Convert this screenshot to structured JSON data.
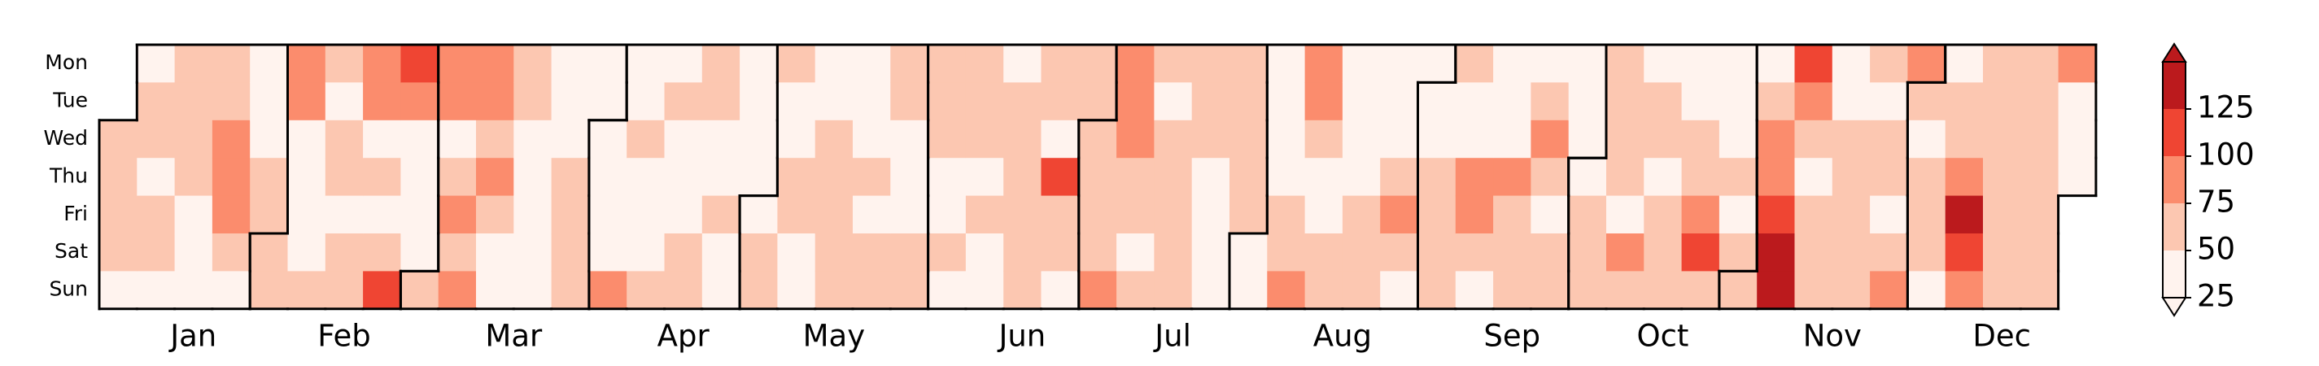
{
  "chart_data": {
    "type": "calendar-heatmap",
    "days": [
      "Mon",
      "Tue",
      "Wed",
      "Thu",
      "Fri",
      "Sat",
      "Sun"
    ],
    "months": [
      {
        "name": "Jan",
        "values": [
          62,
          62,
          62,
          62,
          38,
          38,
          62,
          62,
          38,
          62,
          62,
          38,
          62,
          62,
          62,
          62,
          38,
          38,
          38,
          62,
          62,
          87,
          87,
          87,
          62,
          38,
          38,
          38,
          38,
          62,
          62
        ]
      },
      {
        "name": "Feb",
        "values": [
          62,
          62,
          87,
          87,
          38,
          38,
          38,
          38,
          62,
          62,
          38,
          62,
          62,
          38,
          62,
          62,
          87,
          87,
          38,
          62,
          38,
          62,
          112,
          112,
          87,
          38,
          38,
          38,
          38
        ]
      },
      {
        "name": "Mar",
        "values": [
          62,
          87,
          87,
          38,
          62,
          87,
          62,
          87,
          87,
          87,
          62,
          87,
          62,
          38,
          38,
          62,
          62,
          38,
          38,
          38,
          38,
          38,
          38,
          38,
          38,
          62,
          62,
          62,
          62,
          38,
          38
        ]
      },
      {
        "name": "Apr",
        "values": [
          38,
          38,
          38,
          38,
          87,
          38,
          38,
          62,
          38,
          38,
          38,
          62,
          38,
          62,
          38,
          38,
          38,
          62,
          62,
          62,
          62,
          38,
          38,
          62,
          38,
          38,
          38,
          38,
          38,
          38
        ]
      },
      {
        "name": "May",
        "values": [
          38,
          62,
          62,
          62,
          38,
          38,
          62,
          62,
          38,
          38,
          38,
          38,
          62,
          62,
          62,
          62,
          62,
          38,
          38,
          38,
          62,
          38,
          62,
          62,
          62,
          62,
          38,
          38,
          38,
          62,
          62
        ]
      },
      {
        "name": "Jun",
        "values": [
          62,
          62,
          62,
          38,
          38,
          62,
          38,
          62,
          62,
          62,
          38,
          62,
          38,
          38,
          38,
          62,
          62,
          62,
          62,
          62,
          62,
          62,
          62,
          38,
          112,
          62,
          62,
          38,
          62,
          62
        ]
      },
      {
        "name": "Jul",
        "values": [
          62,
          62,
          62,
          62,
          87,
          87,
          87,
          87,
          62,
          62,
          38,
          62,
          62,
          38,
          62,
          62,
          62,
          62,
          62,
          62,
          62,
          62,
          38,
          38,
          38,
          38,
          62,
          62,
          62,
          62,
          62
        ]
      },
      {
        "name": "Aug",
        "values": [
          38,
          38,
          38,
          38,
          38,
          38,
          62,
          62,
          87,
          87,
          87,
          62,
          38,
          38,
          62,
          62,
          38,
          38,
          38,
          38,
          62,
          62,
          62,
          38,
          38,
          38,
          62,
          87,
          62,
          38,
          38
        ]
      },
      {
        "name": "Sep",
        "values": [
          38,
          38,
          62,
          62,
          62,
          62,
          62,
          38,
          38,
          87,
          87,
          62,
          38,
          38,
          38,
          38,
          87,
          62,
          62,
          62,
          38,
          62,
          87,
          62,
          38,
          62,
          62,
          38,
          38,
          38
        ]
      },
      {
        "name": "Oct",
        "values": [
          38,
          62,
          62,
          62,
          62,
          62,
          62,
          62,
          38,
          87,
          62,
          38,
          62,
          62,
          38,
          62,
          62,
          62,
          38,
          38,
          62,
          62,
          87,
          112,
          62,
          38,
          38,
          38,
          62,
          38,
          62
        ]
      },
      {
        "name": "Nov",
        "values": [
          62,
          38,
          62,
          87,
          87,
          112,
          140,
          140,
          112,
          87,
          62,
          38,
          62,
          62,
          62,
          38,
          38,
          62,
          62,
          62,
          62,
          62,
          62,
          38,
          62,
          62,
          38,
          62,
          87,
          87
        ]
      },
      {
        "name": "Dec",
        "values": [
          62,
          38,
          62,
          62,
          62,
          38,
          38,
          62,
          62,
          87,
          140,
          112,
          87,
          62,
          62,
          62,
          62,
          62,
          62,
          62,
          62,
          62,
          62,
          62,
          62,
          62,
          62,
          87,
          38,
          38,
          38
        ]
      }
    ],
    "colors": [
      "#fff3ee",
      "#fcc7b1",
      "#fb8c6d",
      "#ef4533",
      "#bb1a1d"
    ],
    "clim": [
      25,
      150
    ],
    "cticks": [
      25,
      50,
      75,
      100,
      125
    ]
  }
}
